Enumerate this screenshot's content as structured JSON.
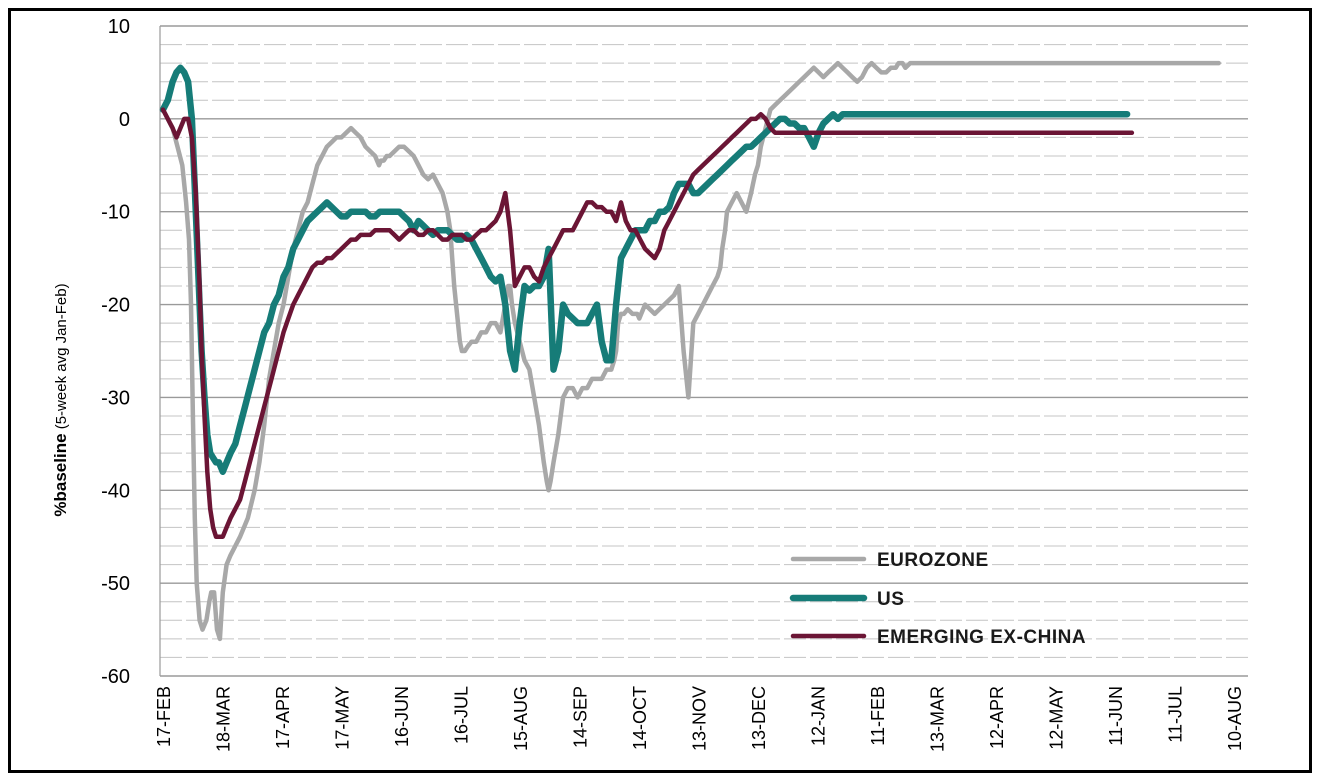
{
  "chart_data": {
    "type": "line",
    "title": "",
    "ylabel_bold": "%baseline",
    "ylabel_rest": " (5-week avg Jan-Feb)",
    "xlabel": "",
    "ylim": [
      -60,
      10
    ],
    "yticks": [
      10,
      0,
      -10,
      -20,
      -30,
      -40,
      -50,
      -60
    ],
    "grid": true,
    "legend_position": "lower-right",
    "x_ticks": [
      "17-FEB",
      "18-MAR",
      "17-APR",
      "17-MAY",
      "16-JUN",
      "16-JUL",
      "15-AUG",
      "14-SEP",
      "14-OCT",
      "13-NOV",
      "13-DEC",
      "12-JAN",
      "11-FEB",
      "13-MAR",
      "12-APR",
      "12-MAY",
      "11-JUN",
      "11-JUL",
      "10-AUG"
    ],
    "series": [
      {
        "name": "EUROZONE",
        "color": "#a8a8a8",
        "x": [
          0,
          5,
          10,
          15,
          20,
          24,
          27,
          29,
          31,
          33,
          35,
          38,
          41,
          45,
          48,
          50,
          53,
          56,
          59,
          62,
          66,
          70,
          75,
          80,
          88,
          95,
          100,
          105,
          110,
          115,
          120,
          125,
          130,
          135,
          140,
          145,
          150,
          155,
          160,
          165,
          170,
          175,
          180,
          185,
          190,
          195,
          200,
          205,
          210,
          215,
          220,
          224,
          226,
          229,
          232,
          235,
          240,
          245,
          250,
          255,
          260,
          265,
          270,
          275,
          280,
          285,
          290,
          295,
          298,
          300,
          302,
          304,
          306,
          308,
          310,
          313,
          316,
          320,
          325,
          330,
          335,
          340,
          345,
          350,
          355,
          358,
          360,
          362,
          365,
          370,
          375,
          380,
          385,
          390,
          395,
          398,
          400,
          402,
          405,
          410,
          415,
          420,
          425,
          430,
          435,
          440,
          445,
          450,
          455,
          460,
          465,
          468,
          470,
          472,
          475,
          478,
          482,
          487,
          490,
          492,
          494,
          496,
          500,
          505,
          510,
          515,
          520,
          525,
          530,
          535,
          540,
          545,
          550,
          555,
          560,
          565,
          570,
          575,
          578,
          580,
          583,
          585,
          590,
          595,
          600,
          605,
          610,
          612,
          614,
          617,
          620,
          625,
          630,
          635,
          640,
          645,
          650,
          655,
          660,
          665,
          670,
          675,
          680,
          685,
          690,
          695,
          700,
          705,
          710,
          715,
          720,
          725,
          730,
          735,
          740,
          745,
          750,
          755,
          760,
          763,
          765,
          767,
          770,
          775,
          780,
          785,
          790,
          795,
          800,
          805,
          810,
          815,
          820,
          825,
          830,
          835,
          840,
          845,
          850,
          855,
          860,
          865,
          870,
          875,
          880,
          885,
          890,
          895,
          900,
          905,
          910,
          915,
          920,
          925,
          930,
          935,
          940,
          945,
          950,
          955,
          960,
          965,
          970,
          975,
          978,
          980,
          983,
          985,
          990,
          995,
          1000,
          1005,
          1010,
          1015,
          1020,
          1025,
          1028,
          1030,
          1032,
          1034,
          1037,
          1040,
          1045,
          1050,
          1055,
          1060,
          1065,
          1070,
          1075,
          1080,
          1085,
          1090,
          1095
        ],
        "values": [
          1,
          0,
          -1,
          -3,
          -5,
          -9,
          -13,
          -20,
          -32,
          -43,
          -50,
          -54,
          -55,
          -54,
          -52,
          -51,
          -51,
          -55,
          -56,
          -51,
          -48,
          -47,
          -46,
          -45,
          -43,
          -40,
          -37,
          -33,
          -28,
          -25,
          -22,
          -20,
          -17,
          -14,
          -12,
          -10,
          -9,
          -7,
          -5,
          -4,
          -3,
          -2.5,
          -2,
          -2,
          -1.5,
          -1,
          -1.5,
          -2,
          -3,
          -3.5,
          -4,
          -5,
          -4.5,
          -4.5,
          -4,
          -4,
          -3.5,
          -3,
          -3,
          -3.5,
          -4,
          -5,
          -6,
          -6.5,
          -6,
          -7,
          -8,
          -10,
          -12,
          -15,
          -18,
          -20,
          -22,
          -24,
          -25,
          -25,
          -24.5,
          -24,
          -24,
          -23,
          -23,
          -22,
          -22,
          -23,
          -20,
          -18,
          -18,
          -20,
          -22,
          -24,
          -26,
          -27,
          -30,
          -33,
          -37,
          -39,
          -40,
          -39,
          -37,
          -34,
          -30,
          -29,
          -29,
          -30,
          -29,
          -29,
          -28,
          -28,
          -28,
          -27,
          -27,
          -26,
          -25,
          -22,
          -21,
          -21,
          -20.5,
          -21,
          -21,
          -21,
          -21.5,
          -21,
          -20,
          -20.5,
          -21,
          -20.5,
          -20,
          -19.5,
          -19,
          -18,
          -25,
          -30,
          -22,
          -21,
          -20,
          -19,
          -18,
          -17,
          -16,
          -14,
          -12,
          -10,
          -9,
          -8,
          -9,
          -10,
          -8,
          -7,
          -6,
          -5,
          -3,
          -1,
          1,
          1.5,
          2,
          2.5,
          3,
          3.5,
          4,
          4.5,
          5,
          5.5,
          5,
          4.5,
          5,
          5.5,
          6,
          5.5,
          5,
          4.5,
          4,
          4.5,
          5.5,
          6,
          5.5,
          5,
          5,
          5.5,
          5.5,
          6,
          6,
          6,
          5.5,
          6,
          6,
          6,
          6,
          6,
          6,
          6,
          6,
          6,
          6,
          6,
          6,
          6,
          6,
          6,
          6,
          6,
          6,
          6,
          6,
          6,
          6,
          6,
          6,
          6,
          6,
          6,
          6,
          6,
          6,
          6,
          6,
          6,
          6,
          6,
          6,
          6,
          6,
          6,
          6,
          6,
          6,
          6,
          6,
          6,
          6,
          6,
          6,
          6,
          6,
          6,
          6,
          6,
          6,
          6,
          6,
          6,
          6,
          6,
          6,
          6,
          6,
          6,
          6,
          6,
          6,
          6,
          6,
          6,
          6
        ]
      },
      {
        "name": "US",
        "color": "#167c78",
        "x": [],
        "values": []
      },
      {
        "name": "EMERGING EX-CHINA",
        "color": "#6b1535",
        "x": [],
        "values": []
      }
    ]
  }
}
